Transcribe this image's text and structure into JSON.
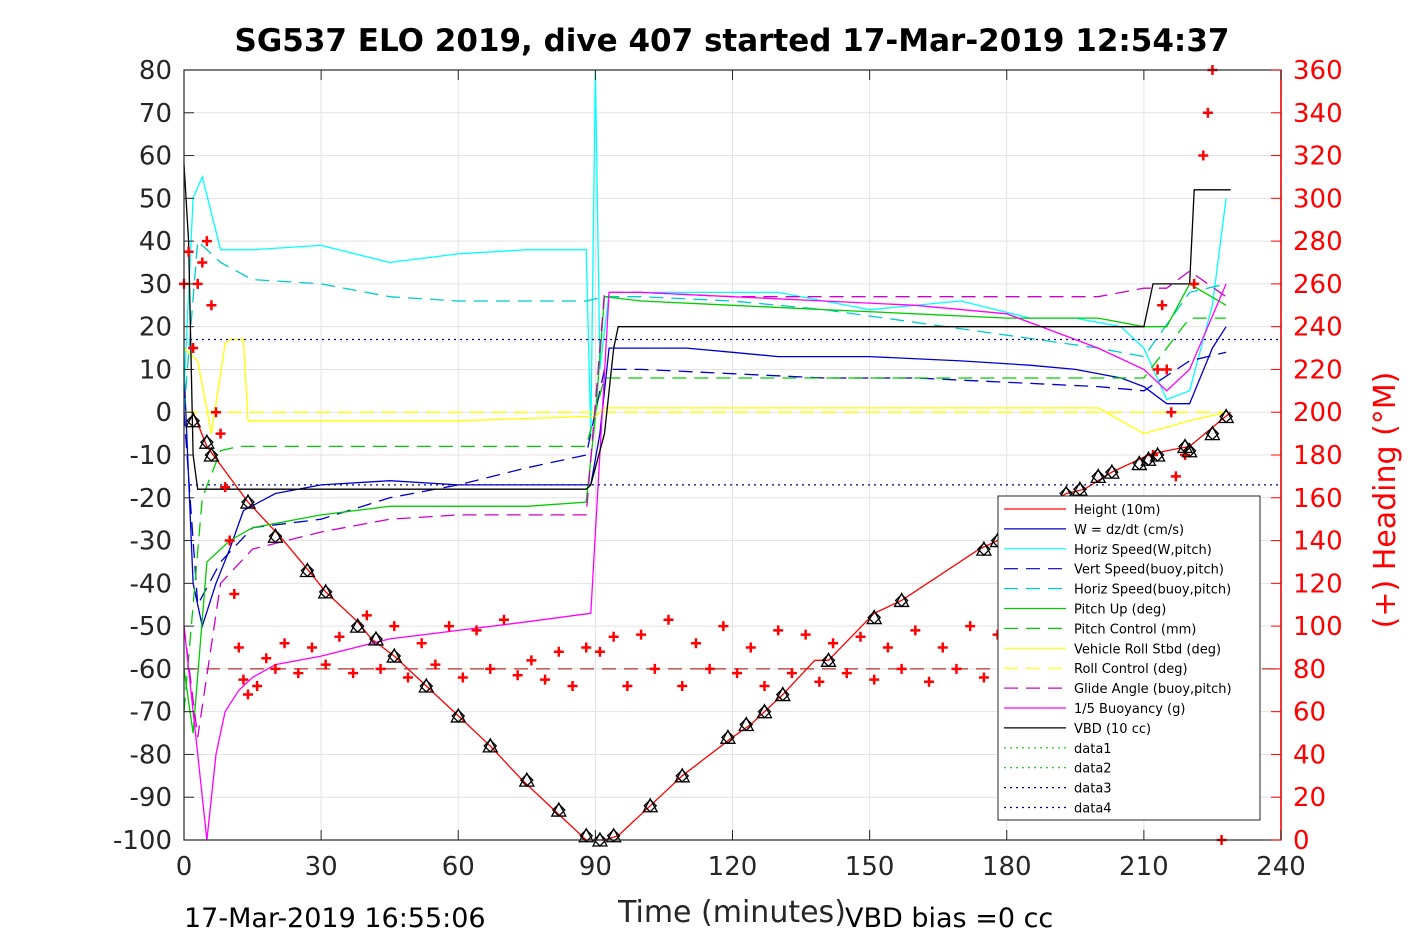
{
  "chart_data": {
    "type": "line",
    "title": "SG537 ELO 2019, dive 407 started 17-Mar-2019 12:54:37",
    "xlabel": "Time (minutes)",
    "ylabel": "",
    "ylabel_right": "(+) Heading (°M)",
    "xlim": [
      0,
      240
    ],
    "ylim": [
      -100,
      80
    ],
    "ylim_right": [
      0,
      360
    ],
    "xticks": [
      0,
      30,
      60,
      90,
      120,
      150,
      180,
      210,
      240
    ],
    "yticks": [
      80,
      70,
      60,
      50,
      40,
      30,
      20,
      10,
      0,
      -10,
      -20,
      -30,
      -40,
      -50,
      -60,
      -70,
      -80,
      -90,
      -100
    ],
    "yticks_right": [
      360,
      340,
      320,
      300,
      280,
      260,
      240,
      220,
      200,
      180,
      160,
      140,
      120,
      100,
      80,
      60,
      40,
      20,
      0
    ],
    "grid": true,
    "legend_position": "lower-right",
    "footer_left": "17-Mar-2019 16:55:06",
    "footer_right": "VBD bias =0 cc",
    "hline_right": 80,
    "series": [
      {
        "name": "Height (10m)",
        "color": "#ff0000",
        "style": "solid",
        "x": [
          0,
          2,
          5,
          14,
          21,
          28,
          31,
          38,
          41,
          46,
          53,
          60,
          67,
          74,
          81,
          88,
          92,
          95,
          102,
          109,
          120,
          124,
          128,
          131,
          138,
          141,
          151,
          157,
          174,
          178,
          193,
          197,
          203,
          211,
          215,
          220,
          229
        ],
        "values": [
          0,
          0,
          -8,
          -21,
          -29,
          -38,
          -42,
          -49,
          -53,
          -57,
          -64,
          -71,
          -78,
          -86,
          -93,
          -100,
          -100,
          -99,
          -92,
          -85,
          -76,
          -73,
          -69,
          -66,
          -58,
          -58,
          -47,
          -44,
          -32,
          -30,
          -19,
          -18,
          -14,
          -10,
          -9,
          -8,
          0
        ]
      },
      {
        "name": "W = dz/dt (cm/s)",
        "color": "#0000cc",
        "style": "solid",
        "x": [
          0,
          2,
          4,
          7,
          10,
          13,
          20,
          30,
          45,
          60,
          75,
          89,
          91,
          93,
          100,
          110,
          120,
          130,
          150,
          170,
          185,
          195,
          205,
          210,
          215,
          220,
          225,
          228
        ],
        "values": [
          10,
          -40,
          -50,
          -40,
          -32,
          -23,
          -19,
          -17,
          -16,
          -17,
          -17,
          -17,
          -5,
          15,
          15,
          15,
          14,
          13,
          13,
          12,
          11,
          10,
          8,
          6,
          2,
          2,
          15,
          20
        ]
      },
      {
        "name": "Horiz Speed(W,pitch)",
        "color": "#00ffff",
        "style": "solid",
        "x": [
          0,
          2,
          4,
          8,
          15,
          30,
          45,
          60,
          75,
          88,
          89,
          90,
          91,
          93,
          100,
          110,
          120,
          130,
          150,
          170,
          185,
          195,
          205,
          210,
          215,
          220,
          225,
          228
        ],
        "values": [
          5,
          50,
          55,
          38,
          38,
          39,
          35,
          37,
          38,
          38,
          -5,
          80,
          10,
          28,
          28,
          28,
          28,
          28,
          24,
          26,
          22,
          22,
          20,
          15,
          3,
          5,
          25,
          50
        ]
      },
      {
        "name": "Vert Speed(buoy,pitch)",
        "color": "#0000cc",
        "style": "dashed",
        "x": [
          0,
          3,
          8,
          15,
          30,
          45,
          60,
          75,
          88,
          92,
          100,
          120,
          140,
          160,
          180,
          200,
          210,
          220,
          228
        ],
        "values": [
          0,
          -45,
          -35,
          -27,
          -25,
          -20,
          -17,
          -13,
          -10,
          10,
          10,
          9,
          8,
          8,
          7,
          6,
          5,
          12,
          14
        ]
      },
      {
        "name": "Horiz Speed(buoy,pitch)",
        "color": "#00cccc",
        "style": "dashed",
        "x": [
          0,
          3,
          8,
          15,
          30,
          45,
          60,
          75,
          88,
          92,
          100,
          120,
          140,
          160,
          180,
          200,
          210,
          220,
          228
        ],
        "values": [
          0,
          40,
          35,
          31,
          30,
          27,
          26,
          26,
          26,
          27,
          27,
          26,
          24,
          21,
          18,
          15,
          13,
          28,
          30
        ]
      },
      {
        "name": "Pitch Up (deg)",
        "color": "#00cc00",
        "style": "solid",
        "x": [
          0,
          2,
          5,
          10,
          15,
          30,
          45,
          60,
          75,
          88,
          90,
          92,
          100,
          120,
          140,
          160,
          180,
          200,
          210,
          215,
          220,
          228
        ],
        "values": [
          -60,
          -75,
          -35,
          -30,
          -27,
          -24,
          -22,
          -22,
          -22,
          -21,
          -1,
          27,
          26,
          25,
          24,
          23,
          22,
          22,
          20,
          20,
          30,
          25
        ]
      },
      {
        "name": "Pitch Control (mm)",
        "color": "#00cc00",
        "style": "dashed",
        "x": [
          0,
          4,
          8,
          12,
          30,
          60,
          88,
          90,
          92,
          100,
          120,
          160,
          210,
          220,
          228
        ],
        "values": [
          -70,
          -20,
          -9,
          -8,
          -8,
          -8,
          -8,
          0,
          8,
          8,
          8,
          8,
          8,
          22,
          22
        ]
      },
      {
        "name": "Vehicle Roll Stbd (deg)",
        "color": "#ffff00",
        "style": "solid",
        "x": [
          0,
          3,
          6,
          9,
          10,
          13,
          14,
          30,
          60,
          88,
          90,
          92,
          100,
          130,
          160,
          190,
          200,
          210,
          220,
          228
        ],
        "values": [
          15,
          12,
          -5,
          16,
          17,
          17,
          -2,
          -2,
          -2,
          -1,
          -1,
          1,
          1,
          1,
          1,
          1,
          1,
          -5,
          -2,
          0
        ]
      },
      {
        "name": "Roll Control (deg)",
        "color": "#ffff00",
        "style": "dashed",
        "x": [
          0,
          40,
          88,
          90,
          92,
          130,
          160,
          220,
          228
        ],
        "values": [
          0,
          0,
          0,
          0,
          0,
          0,
          0,
          0,
          0
        ]
      },
      {
        "name": "Glide Angle (buoy,pitch)",
        "color": "#cc00cc",
        "style": "dashed",
        "x": [
          0,
          3,
          8,
          15,
          30,
          45,
          60,
          75,
          88,
          92,
          100,
          120,
          140,
          160,
          180,
          200,
          210,
          215,
          220,
          228
        ],
        "values": [
          -50,
          -76,
          -40,
          -32,
          -28,
          -25,
          -24,
          -24,
          -24,
          28,
          28,
          27,
          27,
          27,
          27,
          27,
          29,
          29,
          33,
          27
        ]
      },
      {
        "name": "1/5 Buoyancy (g)",
        "color": "#ff00ff",
        "style": "solid",
        "x": [
          0,
          5,
          7,
          9,
          12,
          15,
          20,
          30,
          45,
          60,
          75,
          89,
          93,
          100,
          120,
          140,
          160,
          180,
          200,
          210,
          215,
          220,
          228
        ],
        "values": [
          -50,
          -100,
          -80,
          -70,
          -65,
          -62,
          -59,
          -57,
          -53,
          -51,
          -49,
          -47,
          28,
          28,
          27,
          26,
          25,
          23,
          15,
          10,
          5,
          10,
          30
        ]
      },
      {
        "name": "VBD (10 cc)",
        "color": "#000000",
        "style": "solid",
        "x": [
          0,
          1,
          2,
          3,
          88,
          89,
          92,
          94,
          95,
          180,
          205,
          210,
          212,
          220,
          221,
          229
        ],
        "values": [
          58,
          40,
          -10,
          -18,
          -18,
          -17,
          -5,
          15,
          20,
          20,
          20,
          20,
          30,
          30,
          52,
          52
        ]
      },
      {
        "name": "data1",
        "color": "#00cc00",
        "style": "dotted",
        "x": [],
        "values": []
      },
      {
        "name": "data2",
        "color": "#00cc00",
        "style": "dotted",
        "x": [],
        "values": []
      },
      {
        "name": "data3",
        "color": "#000080",
        "style": "dotted",
        "x": [
          0,
          240
        ],
        "values": [
          17,
          17
        ]
      },
      {
        "name": "data4",
        "color": "#000080",
        "style": "dotted",
        "x": [
          0,
          240
        ],
        "values": [
          -17,
          -17
        ]
      }
    ],
    "heading_points": {
      "axis": "right",
      "color": "#ff0000",
      "marker": "+",
      "x": [
        0,
        1,
        2,
        3,
        4,
        5,
        6,
        7,
        8,
        9,
        10,
        11,
        12,
        13,
        14,
        16,
        18,
        20,
        22,
        25,
        28,
        31,
        34,
        37,
        40,
        43,
        46,
        49,
        52,
        55,
        58,
        61,
        64,
        67,
        70,
        73,
        76,
        79,
        82,
        85,
        88,
        91,
        94,
        97,
        100,
        103,
        106,
        109,
        112,
        115,
        118,
        121,
        124,
        127,
        130,
        133,
        136,
        139,
        142,
        145,
        148,
        151,
        154,
        157,
        160,
        163,
        166,
        169,
        172,
        175,
        178,
        181,
        184,
        187,
        190,
        193,
        196,
        199,
        202,
        205,
        208,
        210,
        212,
        213,
        214,
        215,
        216,
        217,
        219,
        221,
        223,
        224,
        225,
        226,
        227
      ],
      "values": [
        260,
        275,
        230,
        260,
        270,
        280,
        250,
        200,
        190,
        165,
        140,
        115,
        90,
        75,
        68,
        72,
        85,
        80,
        92,
        78,
        90,
        82,
        95,
        78,
        105,
        80,
        100,
        76,
        92,
        82,
        100,
        76,
        98,
        80,
        103,
        77,
        84,
        75,
        88,
        72,
        90,
        88,
        95,
        72,
        96,
        80,
        103,
        72,
        92,
        80,
        100,
        78,
        90,
        72,
        98,
        78,
        96,
        74,
        92,
        78,
        95,
        75,
        90,
        80,
        98,
        74,
        90,
        80,
        100,
        76,
        96,
        80,
        100,
        78,
        96,
        80,
        100,
        84,
        96,
        84,
        98,
        95,
        180,
        220,
        250,
        220,
        200,
        170,
        180,
        260,
        320,
        340,
        360,
        20,
        0
      ]
    },
    "depth_markers": {
      "color": "#000000",
      "x": [
        2,
        5,
        6,
        14,
        20,
        27,
        31,
        38,
        42,
        46,
        53,
        60,
        67,
        75,
        82,
        88,
        91,
        94,
        102,
        109,
        119,
        123,
        127,
        131,
        141,
        151,
        157,
        175,
        178,
        193,
        196,
        200,
        203,
        209,
        211,
        213,
        219,
        220,
        225,
        228
      ],
      "values": [
        -2,
        -7,
        -10,
        -21,
        -29,
        -37,
        -42,
        -50,
        -53,
        -57,
        -64,
        -71,
        -78,
        -86,
        -93,
        -99,
        -100,
        -99,
        -92,
        -85,
        -76,
        -73,
        -70,
        -66,
        -58,
        -48,
        -44,
        -32,
        -30,
        -19,
        -18,
        -15,
        -14,
        -12,
        -11,
        -10,
        -8,
        -9,
        -5,
        -1
      ]
    }
  }
}
